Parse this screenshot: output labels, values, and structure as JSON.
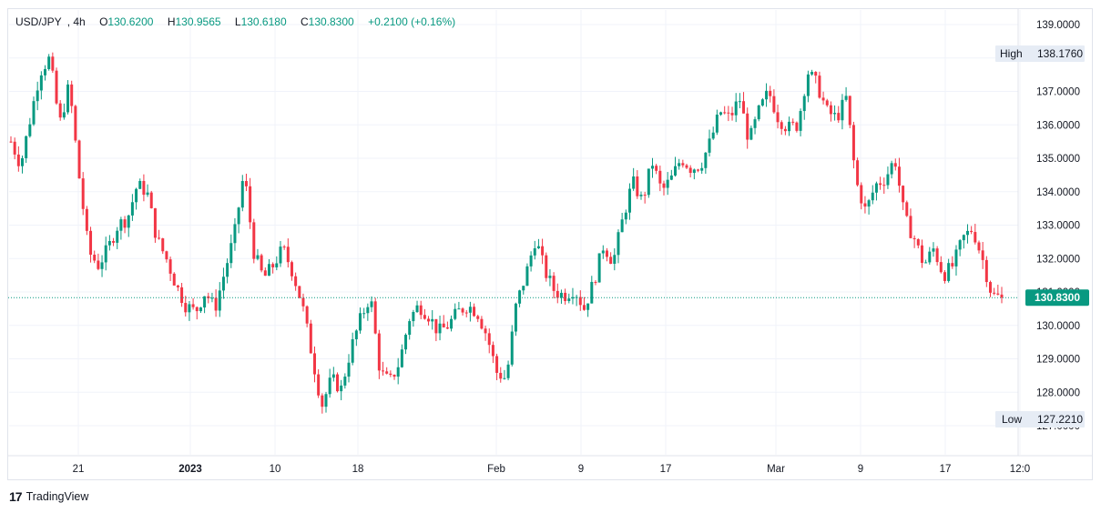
{
  "legend": {
    "symbol": "USD/JPY",
    "interval": "4h",
    "o_key": "O",
    "o_val": "130.6200",
    "h_key": "H",
    "h_val": "130.9565",
    "l_key": "L",
    "l_val": "130.6180",
    "c_key": "C",
    "c_val": "130.8300",
    "change": "+0.2100 (+0.16%)"
  },
  "price_tags": {
    "high_label": "High",
    "high_value": "138.1760",
    "low_label": "Low",
    "low_value": "127.2210",
    "last_value": "130.8300"
  },
  "brand": {
    "logo": "17",
    "name": "TradingView"
  },
  "colors": {
    "up": "#089981",
    "down": "#f23645",
    "last_tag": "#089981",
    "grid": "#f0f3fa"
  },
  "chart_data": {
    "type": "candlestick",
    "title": "",
    "symbol": "USD/JPY",
    "interval": "4h",
    "ylim": [
      126.6,
      139.5
    ],
    "y_ticks": [
      "139.0000",
      "138.0000",
      "137.0000",
      "136.0000",
      "135.0000",
      "134.0000",
      "133.0000",
      "132.0000",
      "131.0000",
      "130.0000",
      "129.0000",
      "128.0000",
      "127.0000"
    ],
    "x_ticks": [
      "21",
      "2023",
      "10",
      "18",
      "Feb",
      "9",
      "17",
      "Mar",
      "9",
      "17",
      "12:0"
    ],
    "high": 138.176,
    "low": 127.221,
    "last": 130.83,
    "grid": true,
    "close_path": [
      [
        0,
        135.5
      ],
      [
        1,
        134.8
      ],
      [
        2,
        136.2
      ],
      [
        3,
        137.6
      ],
      [
        4,
        138.0
      ],
      [
        5,
        136.0
      ],
      [
        6,
        137.2
      ],
      [
        7,
        134.5
      ],
      [
        8,
        132.2
      ],
      [
        9,
        131.8
      ],
      [
        10,
        132.3
      ],
      [
        11,
        133.0
      ],
      [
        12,
        133.2
      ],
      [
        13,
        134.2
      ],
      [
        14,
        134.0
      ],
      [
        15,
        132.6
      ],
      [
        16,
        132.0
      ],
      [
        17,
        131.2
      ],
      [
        18,
        130.6
      ],
      [
        19,
        130.4
      ],
      [
        20,
        131.0
      ],
      [
        21,
        130.5
      ],
      [
        22,
        131.6
      ],
      [
        23,
        132.7
      ],
      [
        24,
        134.6
      ],
      [
        25,
        132.2
      ],
      [
        26,
        131.4
      ],
      [
        27,
        131.8
      ],
      [
        28,
        132.3
      ],
      [
        29,
        131.6
      ],
      [
        30,
        130.6
      ],
      [
        31,
        129.1
      ],
      [
        32,
        127.6
      ],
      [
        33,
        128.4
      ],
      [
        34,
        128.1
      ],
      [
        35,
        129.3
      ],
      [
        36,
        130.2
      ],
      [
        37,
        130.9
      ],
      [
        38,
        128.6
      ],
      [
        39,
        128.3
      ],
      [
        40,
        128.9
      ],
      [
        41,
        130.2
      ],
      [
        42,
        130.6
      ],
      [
        43,
        130.3
      ],
      [
        44,
        129.8
      ],
      [
        45,
        130.0
      ],
      [
        46,
        130.4
      ],
      [
        47,
        130.6
      ],
      [
        48,
        130.4
      ],
      [
        49,
        129.7
      ],
      [
        50,
        128.6
      ],
      [
        51,
        128.4
      ],
      [
        52,
        130.6
      ],
      [
        53,
        131.5
      ],
      [
        54,
        132.6
      ],
      [
        55,
        131.6
      ],
      [
        56,
        131.0
      ],
      [
        57,
        130.9
      ],
      [
        58,
        131.1
      ],
      [
        59,
        130.5
      ],
      [
        60,
        131.3
      ],
      [
        61,
        132.4
      ],
      [
        62,
        131.9
      ],
      [
        63,
        133.2
      ],
      [
        64,
        134.3
      ],
      [
        65,
        133.7
      ],
      [
        66,
        134.9
      ],
      [
        67,
        134.0
      ],
      [
        68,
        134.4
      ],
      [
        69,
        135.0
      ],
      [
        70,
        134.7
      ],
      [
        71,
        134.8
      ],
      [
        72,
        135.5
      ],
      [
        73,
        136.4
      ],
      [
        74,
        136.2
      ],
      [
        75,
        136.8
      ],
      [
        76,
        135.5
      ],
      [
        77,
        136.4
      ],
      [
        78,
        137.0
      ],
      [
        79,
        136.2
      ],
      [
        80,
        135.9
      ],
      [
        81,
        136.0
      ],
      [
        82,
        137.6
      ],
      [
        83,
        137.2
      ],
      [
        84,
        136.4
      ],
      [
        85,
        136.2
      ],
      [
        86,
        136.8
      ],
      [
        87,
        134.3
      ],
      [
        88,
        133.4
      ],
      [
        89,
        134.2
      ],
      [
        90,
        134.4
      ],
      [
        91,
        135.0
      ],
      [
        92,
        133.2
      ],
      [
        93,
        132.6
      ],
      [
        94,
        131.8
      ],
      [
        95,
        132.3
      ],
      [
        96,
        131.5
      ],
      [
        97,
        131.8
      ],
      [
        98,
        132.6
      ],
      [
        99,
        132.9
      ],
      [
        100,
        132.0
      ],
      [
        101,
        130.9
      ],
      [
        102,
        130.83
      ]
    ]
  }
}
